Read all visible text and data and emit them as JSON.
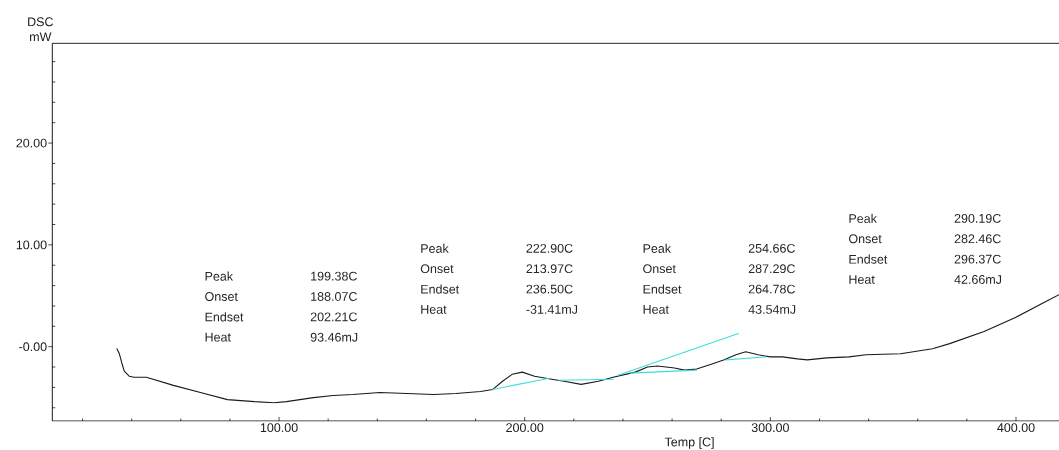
{
  "chart_data": {
    "type": "line",
    "ylabel": "DSC mW",
    "xlabel": "Temp [C]",
    "xlim": [
      7.7,
      417.5
    ],
    "ylim": [
      -7.3,
      29.8
    ],
    "xticks": [
      {
        "value": 20,
        "label": null
      },
      {
        "value": 40,
        "label": null
      },
      {
        "value": 60,
        "label": null
      },
      {
        "value": 80,
        "label": null
      },
      {
        "value": 100,
        "label": "100.00"
      },
      {
        "value": 120,
        "label": null
      },
      {
        "value": 140,
        "label": null
      },
      {
        "value": 160,
        "label": null
      },
      {
        "value": 180,
        "label": null
      },
      {
        "value": 200,
        "label": "200.00"
      },
      {
        "value": 220,
        "label": null
      },
      {
        "value": 240,
        "label": null
      },
      {
        "value": 260,
        "label": null
      },
      {
        "value": 280,
        "label": null
      },
      {
        "value": 300,
        "label": "300.00"
      },
      {
        "value": 320,
        "label": null
      },
      {
        "value": 340,
        "label": null
      },
      {
        "value": 360,
        "label": null
      },
      {
        "value": 380,
        "label": null
      },
      {
        "value": 400,
        "label": "400.00"
      }
    ],
    "yticks": [
      {
        "value": -6,
        "label": null
      },
      {
        "value": -4,
        "label": null
      },
      {
        "value": -2,
        "label": null
      },
      {
        "value": 0,
        "label": "-0.00"
      },
      {
        "value": 2,
        "label": null
      },
      {
        "value": 4,
        "label": null
      },
      {
        "value": 6,
        "label": null
      },
      {
        "value": 8,
        "label": null
      },
      {
        "value": 10,
        "label": "10.00"
      },
      {
        "value": 12,
        "label": null
      },
      {
        "value": 14,
        "label": null
      },
      {
        "value": 16,
        "label": null
      },
      {
        "value": 18,
        "label": null
      },
      {
        "value": 20,
        "label": "20.00"
      },
      {
        "value": 22,
        "label": null
      },
      {
        "value": 24,
        "label": null
      },
      {
        "value": 26,
        "label": null
      },
      {
        "value": 28,
        "label": null
      }
    ],
    "marker": "none",
    "line_style": "solid",
    "series": [
      {
        "color": "#1a1a1a",
        "x": [
          34,
          35,
          36,
          37,
          39,
          41,
          46,
          57,
          68,
          79,
          90,
          98,
          103,
          114,
          122,
          130,
          141,
          152,
          163,
          172,
          182,
          187,
          191,
          195,
          199,
          204,
          211,
          216,
          223,
          230,
          236,
          245,
          250,
          254,
          261,
          265,
          270,
          275,
          281,
          286,
          290,
          295,
          300,
          305,
          311,
          315,
          323,
          332,
          339,
          353,
          366,
          373,
          387,
          400,
          411,
          417.5
        ],
        "values": [
          -0.2,
          -0.7,
          -1.6,
          -2.4,
          -2.9,
          -3.0,
          -3.0,
          -3.8,
          -4.5,
          -5.2,
          -5.4,
          -5.5,
          -5.4,
          -5.0,
          -4.8,
          -4.7,
          -4.5,
          -4.6,
          -4.7,
          -4.6,
          -4.4,
          -4.2,
          -3.4,
          -2.7,
          -2.5,
          -2.9,
          -3.2,
          -3.4,
          -3.7,
          -3.4,
          -3.0,
          -2.5,
          -2.0,
          -1.9,
          -2.1,
          -2.3,
          -2.2,
          -1.8,
          -1.3,
          -0.8,
          -0.5,
          -0.8,
          -1.0,
          -1.0,
          -1.2,
          -1.3,
          -1.1,
          -1.0,
          -0.8,
          -0.7,
          -0.2,
          0.3,
          1.5,
          2.9,
          4.3,
          5.1
        ]
      },
      {
        "color": "#40dcdc",
        "x": [
          187,
          210
        ],
        "values": [
          -4.2,
          -3.1
        ]
      },
      {
        "color": "#40dcdc",
        "x": [
          214,
          236
        ],
        "values": [
          -3.3,
          -3.2
        ]
      },
      {
        "color": "#40dcdc",
        "x": [
          243,
          270
        ],
        "values": [
          -2.6,
          -2.3
        ]
      },
      {
        "color": "#40dcdc",
        "x": [
          238,
          287
        ],
        "values": [
          -2.8,
          1.3
        ]
      },
      {
        "color": "#40dcdc",
        "x": [
          282,
          298
        ],
        "values": [
          -1.3,
          -1.0
        ]
      }
    ],
    "annotations": [
      "Peak",
      "199.38C",
      "Onset",
      "188.07C",
      "Endset",
      "202.21C",
      "Heat",
      "93.46mJ",
      "Peak",
      "222.90C",
      "Onset",
      "213.97C",
      "Endset",
      "236.50C",
      "Heat",
      "-31.41mJ",
      "Peak",
      "254.66C",
      "Onset",
      "287.29C",
      "Endset",
      "264.78C",
      "Heat",
      "43.54mJ",
      "Peak",
      "290.19C",
      "Onset",
      "282.46C",
      "Endset",
      "296.37C",
      "Heat",
      "42.66mJ"
    ]
  }
}
